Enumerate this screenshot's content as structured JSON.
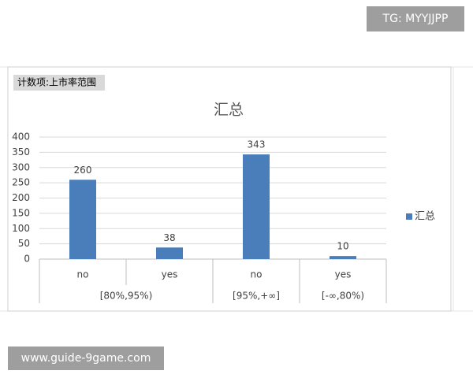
{
  "watermarks": {
    "top": "TG: MYYJJPP",
    "bottom": "www.guide-9game.com"
  },
  "field_button": "计数项:上市率范围",
  "chart_data": {
    "type": "bar",
    "title": "汇总",
    "categories": [
      "no",
      "yes",
      "no",
      "yes"
    ],
    "groups": [
      {
        "label": "[80%,95%)",
        "count": 2
      },
      {
        "label": "[95%,+∞]",
        "count": 1
      },
      {
        "label": "[-∞,80%)",
        "count": 1
      }
    ],
    "series": [
      {
        "name": "汇总",
        "color": "#4a7ebb",
        "values": [
          260,
          38,
          343,
          10
        ]
      }
    ],
    "ylim": [
      0,
      400
    ],
    "yticks": [
      0,
      50,
      100,
      150,
      200,
      250,
      300,
      350,
      400
    ],
    "grid": true,
    "legend": "right"
  }
}
